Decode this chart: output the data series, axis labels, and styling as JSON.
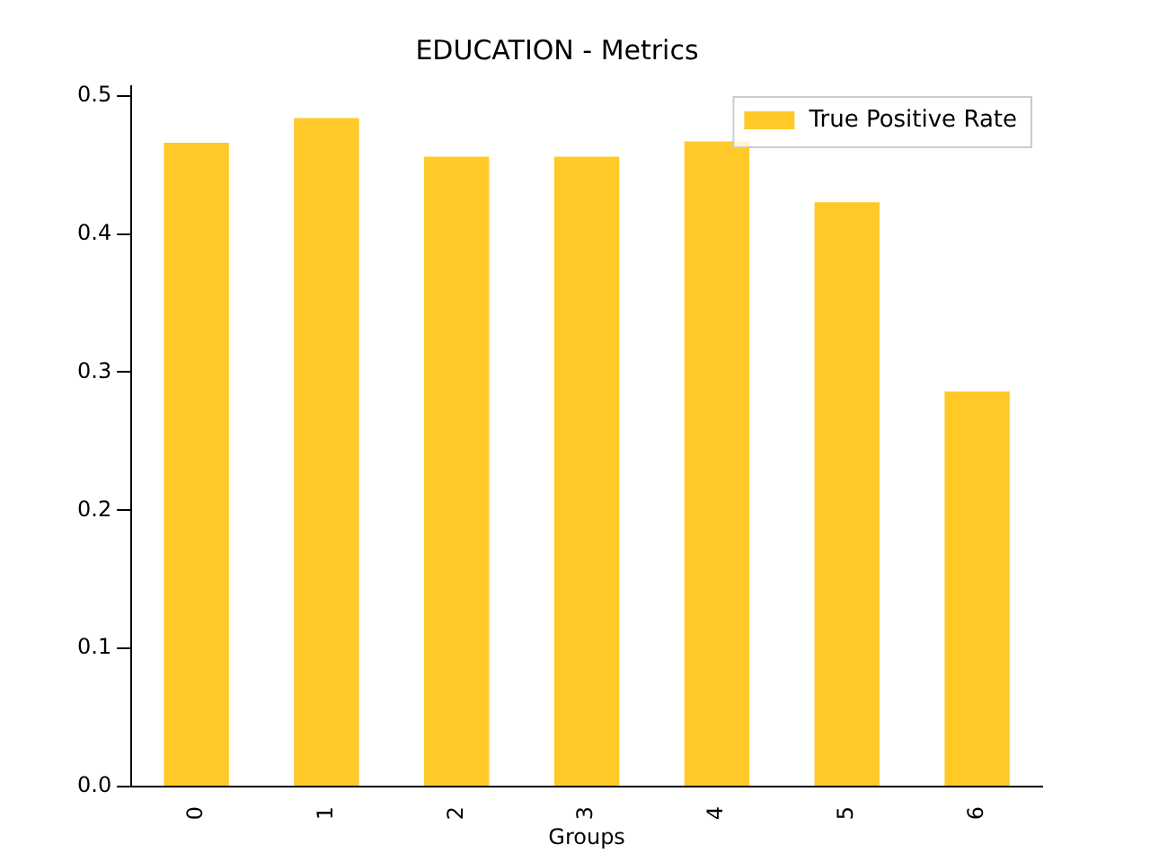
{
  "chart_data": {
    "type": "bar",
    "title": "EDUCATION - Metrics",
    "xlabel": "Groups",
    "categories": [
      "0",
      "1",
      "2",
      "3",
      "4",
      "5",
      "6"
    ],
    "series": [
      {
        "name": "True Positive Rate",
        "color": "#ffc928",
        "values": [
          0.466,
          0.484,
          0.456,
          0.456,
          0.467,
          0.423,
          0.286
        ]
      }
    ],
    "ylim": [
      0,
      0.507
    ],
    "yticks": [
      {
        "value": 0,
        "label": "0.0"
      },
      {
        "value": 0.1,
        "label": "0.1"
      },
      {
        "value": 0.2,
        "label": "0.2"
      },
      {
        "value": 0.3,
        "label": "0.3"
      },
      {
        "value": 0.4,
        "label": "0.4"
      },
      {
        "value": 0.5,
        "label": "0.5"
      }
    ],
    "grid": false,
    "legend": "top right"
  }
}
